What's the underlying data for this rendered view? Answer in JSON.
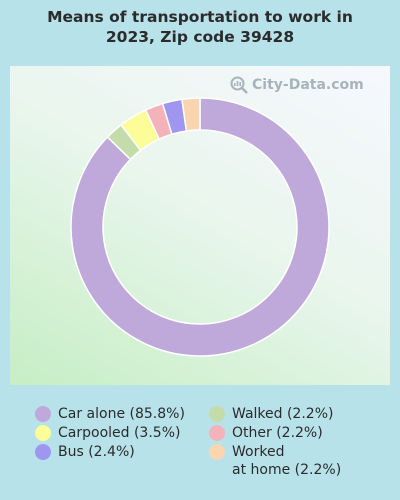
{
  "title": "Means of transportation to work in\n2023, Zip code 39428",
  "watermark": "City-Data.com",
  "chart_data": {
    "type": "pie",
    "subtype": "donut",
    "start_angle_deg": 0,
    "direction": "clockwise",
    "slices": [
      {
        "label": "Car alone (85.8%)",
        "value": 85.8,
        "color": "#bfa8da"
      },
      {
        "label": "Walked (2.2%)",
        "value": 2.2,
        "color": "#c4dcaa"
      },
      {
        "label": "Carpooled (3.5%)",
        "value": 3.5,
        "color": "#fcfc98"
      },
      {
        "label": "Other (2.2%)",
        "value": 2.2,
        "color": "#f4b2ba"
      },
      {
        "label": "Bus (2.4%)",
        "value": 2.4,
        "color": "#9e96f0"
      },
      {
        "label": "Worked\nat home (2.2%)",
        "value": 2.2,
        "color": "#fad6b0"
      }
    ]
  },
  "legend_columns": [
    [
      "Car alone (85.8%)",
      "Carpooled (3.5%)",
      "Bus (2.4%)"
    ],
    [
      "Walked (2.2%)",
      "Other (2.2%)",
      "Worked\nat home (2.2%)"
    ]
  ]
}
